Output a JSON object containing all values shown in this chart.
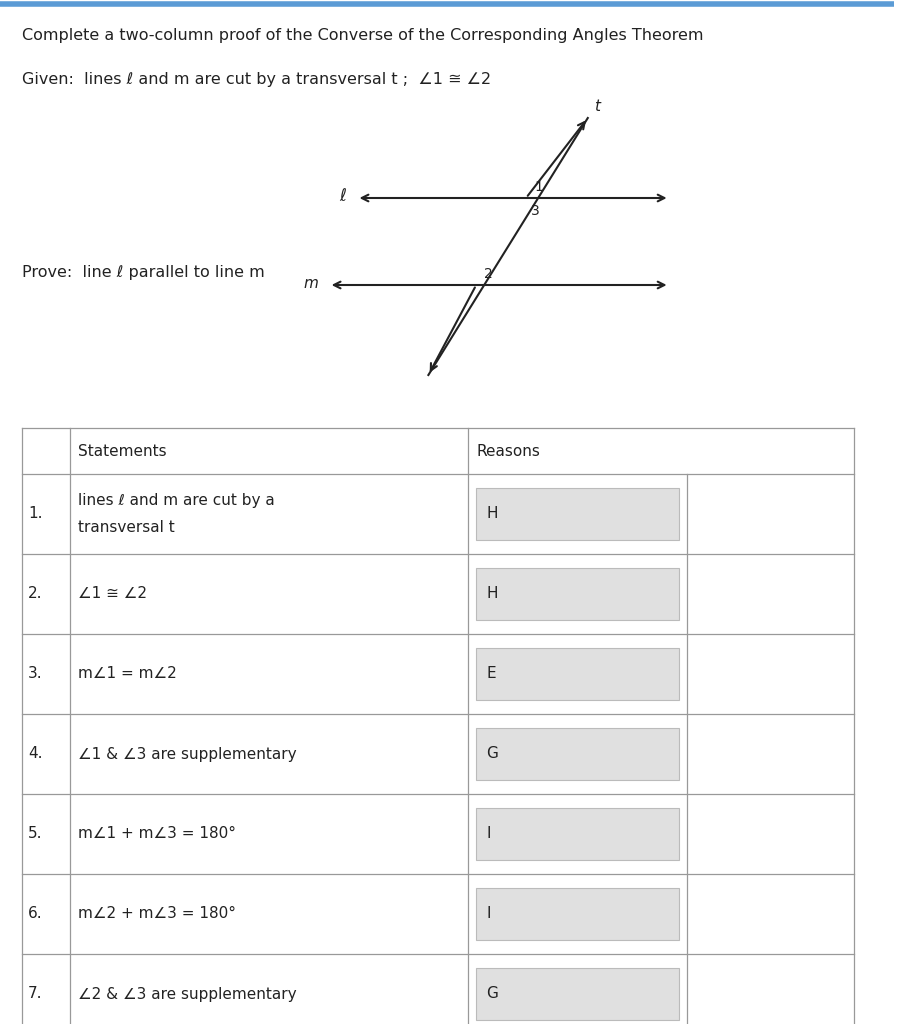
{
  "title_line1": "Complete a two-column proof of the Converse of the Corresponding Angles Theorem",
  "given_text": "Given:  lines ℓ and m are cut by a transversal t ;  ∠1 ≅ ∠2",
  "prove_text": "Prove:  line ℓ parallel to line m",
  "background_color": "#ffffff",
  "header_row": [
    "Statements",
    "Reasons"
  ],
  "rows": [
    {
      "num": "1.",
      "statement": "lines ℓ and m are cut by a\ntransversal t",
      "reason_letter": "H"
    },
    {
      "num": "2.",
      "statement": "∠1 ≅ ∠2",
      "reason_letter": "H"
    },
    {
      "num": "3.",
      "statement": "m∠1 = m∠2",
      "reason_letter": "E"
    },
    {
      "num": "4.",
      "statement": "∠1 & ∠3 are supplementary",
      "reason_letter": "G"
    },
    {
      "num": "5.",
      "statement": "m∠1 + m∠3 = 180°",
      "reason_letter": "I"
    },
    {
      "num": "6.",
      "statement": "m∠2 + m∠3 = 180°",
      "reason_letter": "I"
    },
    {
      "num": "7.",
      "statement": "∠2 & ∠3 are supplementary",
      "reason_letter": "G"
    }
  ],
  "box_color": "#e0e0e0",
  "line_color": "#999999",
  "text_color": "#222222",
  "top_border_color": "#5b9bd5"
}
